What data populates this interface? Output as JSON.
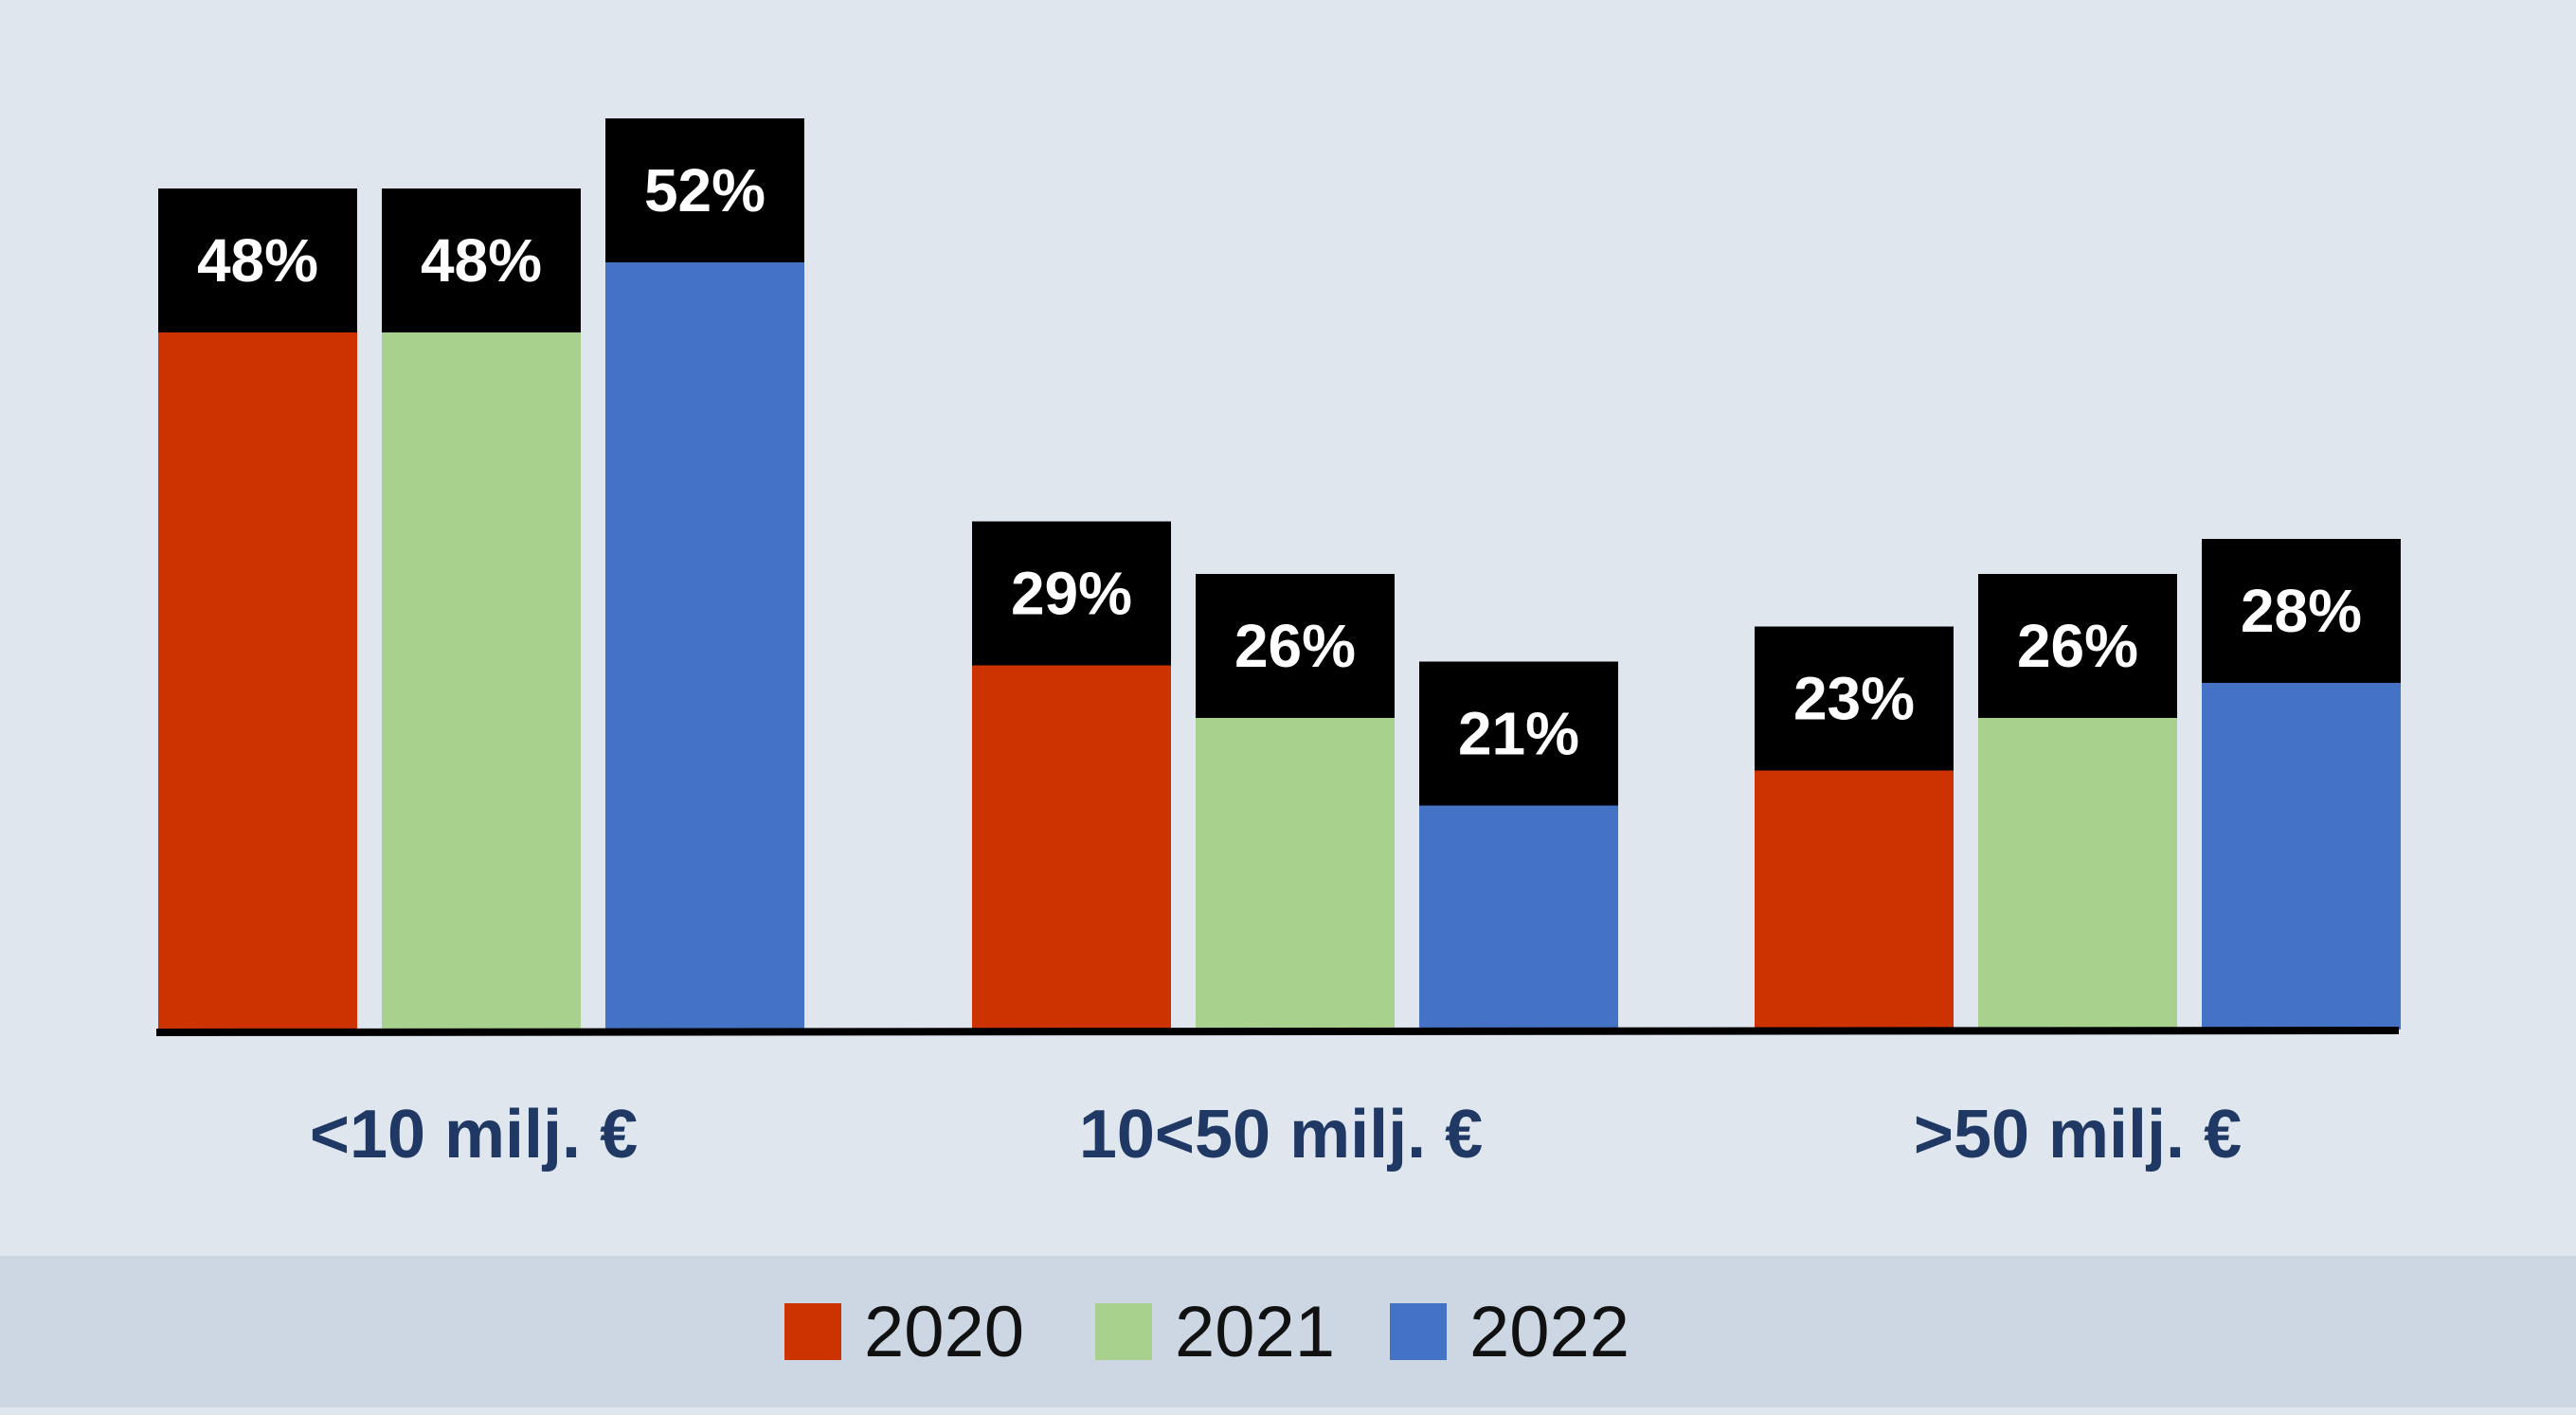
{
  "chart_data": {
    "type": "bar",
    "categories": [
      "<10 milj. €",
      "10<50 milj. €",
      ">50 milj. €"
    ],
    "series": [
      {
        "name": "2020",
        "color": "#cc3300",
        "values": [
          48,
          29,
          23
        ],
        "labels": [
          "48%",
          "29%",
          "23%"
        ]
      },
      {
        "name": "2021",
        "color": "#a9d18e",
        "values": [
          48,
          26,
          26
        ],
        "labels": [
          "48%",
          "26%",
          "26%"
        ]
      },
      {
        "name": "2022",
        "color": "#4472c4",
        "values": [
          52,
          21,
          28
        ],
        "labels": [
          "52%",
          "21%",
          "28%"
        ]
      }
    ],
    "ylim": [
      0,
      60
    ],
    "grid": false,
    "legend_position": "bottom",
    "title": "",
    "xlabel": "",
    "ylabel": "",
    "label_box_color": "#000000",
    "background_color": "#e0e6ee",
    "legend_band_color": "#cdd7e4",
    "category_label_color": "#1f3864"
  }
}
